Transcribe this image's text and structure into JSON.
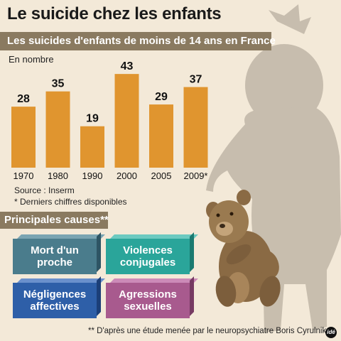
{
  "title": "Le suicide chez les enfants",
  "subtitle": "Les suicides d'enfants de moins de 14 ans en France",
  "unit_label": "En nombre",
  "chart_data": {
    "type": "bar",
    "title": "Les suicides d'enfants de moins de 14 ans en France",
    "ylabel": "En nombre",
    "categories": [
      "1970",
      "1980",
      "1990",
      "2000",
      "2005",
      "2009*"
    ],
    "values": [
      28,
      35,
      19,
      43,
      29,
      37
    ],
    "ylim": [
      0,
      45
    ],
    "grid": false,
    "bar_color": "#e0952f"
  },
  "source": "Source : Inserm",
  "footnote_1": "* Derniers chiffres disponibles",
  "causes_title": "Principales causes**",
  "causes": [
    {
      "label": "Mort d'un\nproche",
      "color": "#4a7c8c"
    },
    {
      "label": "Violences\nconjugales",
      "color": "#2aa59a"
    },
    {
      "label": "Négligences\naffectives",
      "color": "#2e5fa8"
    },
    {
      "label": "Agressions\nsexuelles",
      "color": "#a85a8e"
    }
  ],
  "footnote_2": "** D'après une étude menée par le neuropsychiatre Boris Cyrulnik",
  "logo_text": "idé"
}
